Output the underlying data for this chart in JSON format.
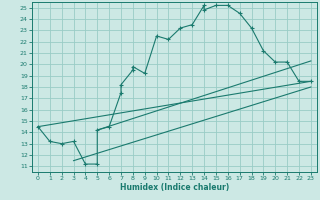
{
  "title": "",
  "xlabel": "Humidex (Indice chaleur)",
  "xlim": [
    -0.5,
    23.5
  ],
  "ylim": [
    10.5,
    25.5
  ],
  "xticks": [
    0,
    1,
    2,
    3,
    4,
    5,
    6,
    7,
    8,
    9,
    10,
    11,
    12,
    13,
    14,
    15,
    16,
    17,
    18,
    19,
    20,
    21,
    22,
    23
  ],
  "yticks": [
    11,
    12,
    13,
    14,
    15,
    16,
    17,
    18,
    19,
    20,
    21,
    22,
    23,
    24,
    25
  ],
  "bg_color": "#cce8e4",
  "grid_color": "#99ccc6",
  "line_color": "#1a7a6e",
  "main_line": [
    [
      0,
      14.5
    ],
    [
      1,
      13.2
    ],
    [
      2,
      13.0
    ],
    [
      3,
      13.2
    ],
    [
      4,
      11.2
    ],
    [
      5,
      11.2
    ],
    [
      5,
      14.2
    ],
    [
      6,
      14.5
    ],
    [
      7,
      17.5
    ],
    [
      7,
      18.2
    ],
    [
      8,
      19.5
    ],
    [
      8,
      19.8
    ],
    [
      9,
      19.2
    ],
    [
      10,
      22.5
    ],
    [
      11,
      22.2
    ],
    [
      12,
      23.2
    ],
    [
      13,
      23.5
    ],
    [
      14,
      25.2
    ],
    [
      14,
      24.8
    ],
    [
      15,
      25.2
    ],
    [
      16,
      25.2
    ],
    [
      17,
      24.5
    ],
    [
      18,
      23.2
    ],
    [
      19,
      21.2
    ],
    [
      20,
      20.2
    ],
    [
      21,
      20.2
    ],
    [
      22,
      18.5
    ],
    [
      23,
      18.5
    ]
  ],
  "diag_line1": [
    [
      0,
      14.5
    ],
    [
      23,
      18.5
    ]
  ],
  "diag_line2": [
    [
      3,
      11.5
    ],
    [
      23,
      18.0
    ]
  ],
  "diag_line3": [
    [
      5,
      14.2
    ],
    [
      23,
      20.3
    ]
  ]
}
